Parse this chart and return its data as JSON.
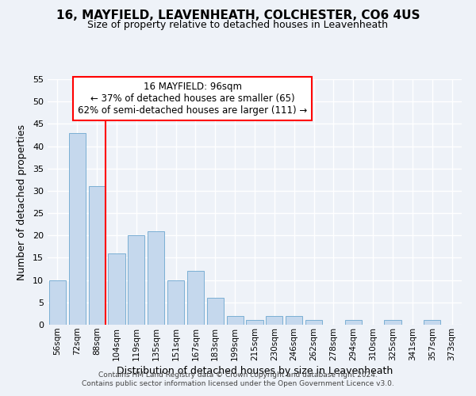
{
  "title": "16, MAYFIELD, LEAVENHEATH, COLCHESTER, CO6 4US",
  "subtitle": "Size of property relative to detached houses in Leavenheath",
  "xlabel": "Distribution of detached houses by size in Leavenheath",
  "ylabel": "Number of detached properties",
  "categories": [
    "56sqm",
    "72sqm",
    "88sqm",
    "104sqm",
    "119sqm",
    "135sqm",
    "151sqm",
    "167sqm",
    "183sqm",
    "199sqm",
    "215sqm",
    "230sqm",
    "246sqm",
    "262sqm",
    "278sqm",
    "294sqm",
    "310sqm",
    "325sqm",
    "341sqm",
    "357sqm",
    "373sqm"
  ],
  "values": [
    10,
    43,
    31,
    16,
    20,
    21,
    10,
    12,
    6,
    2,
    1,
    2,
    2,
    1,
    0,
    1,
    0,
    1,
    0,
    1,
    0
  ],
  "bar_color": "#c5d8ed",
  "bar_edgecolor": "#7bafd4",
  "redline_after_bar": 2,
  "annotation_title": "16 MAYFIELD: 96sqm",
  "annotation_line1": "← 37% of detached houses are smaller (65)",
  "annotation_line2": "62% of semi-detached houses are larger (111) →",
  "ylim": [
    0,
    55
  ],
  "yticks": [
    0,
    5,
    10,
    15,
    20,
    25,
    30,
    35,
    40,
    45,
    50,
    55
  ],
  "bg_color": "#eef2f8",
  "grid_color": "#ffffff",
  "footnote1": "Contains HM Land Registry data © Crown copyright and database right 2024.",
  "footnote2": "Contains public sector information licensed under the Open Government Licence v3.0."
}
